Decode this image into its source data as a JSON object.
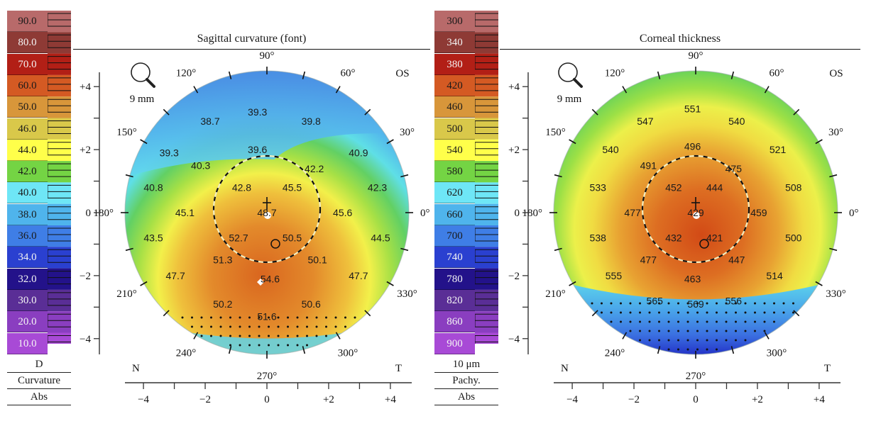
{
  "chart_data": [
    {
      "type": "heatmap",
      "title": "Sagittal curvature (font)",
      "eye": "OS",
      "zoom_label": "9 mm",
      "legend": {
        "unit": "D",
        "map_type": "Curvature",
        "scale": "Abs",
        "levels": [
          {
            "label": "90.0",
            "color": "#b86a6a",
            "dark_text": true
          },
          {
            "label": "80.0",
            "color": "#8e3a35",
            "dark_text": false
          },
          {
            "label": "70.0",
            "color": "#b21f16",
            "dark_text": false
          },
          {
            "label": "60.0",
            "color": "#d45a23",
            "dark_text": true
          },
          {
            "label": "50.0",
            "color": "#d8963a",
            "dark_text": true
          },
          {
            "label": "46.0",
            "color": "#d9c84a",
            "dark_text": true
          },
          {
            "label": "44.0",
            "color": "#ffff4a",
            "dark_text": true
          },
          {
            "label": "42.0",
            "color": "#74d444",
            "dark_text": true
          },
          {
            "label": "40.0",
            "color": "#6ee6f6",
            "dark_text": true
          },
          {
            "label": "38.0",
            "color": "#4fb4ec",
            "dark_text": true
          },
          {
            "label": "36.0",
            "color": "#3f7ee6",
            "dark_text": true
          },
          {
            "label": "34.0",
            "color": "#2a40d0",
            "dark_text": false
          },
          {
            "label": "32.0",
            "color": "#23128a",
            "dark_text": false
          },
          {
            "label": "30.0",
            "color": "#5a2e96",
            "dark_text": false
          },
          {
            "label": "20.0",
            "color": "#8a3ec0",
            "dark_text": false
          },
          {
            "label": "10.0",
            "color": "#a84ad6",
            "dark_text": false
          }
        ]
      },
      "axis": {
        "y_ticks": [
          "+4",
          "+2",
          "0",
          "−2",
          "−4"
        ],
        "x_ticks": [
          "−4",
          "−2",
          "0",
          "+2",
          "+4"
        ],
        "x_left_label": "N",
        "x_right_label": "T",
        "range_mm": [
          -4.5,
          4.5
        ]
      },
      "angle_labels": [
        "0°",
        "30°",
        "60°",
        "90°",
        "120°",
        "150°",
        "180°",
        "210°",
        "240°",
        "270°",
        "300°",
        "330°"
      ],
      "points": [
        {
          "x": -0.3,
          "y": 3.2,
          "v": "39.3"
        },
        {
          "x": -1.8,
          "y": 2.9,
          "v": "38.7"
        },
        {
          "x": 1.4,
          "y": 2.9,
          "v": "39.8"
        },
        {
          "x": -3.1,
          "y": 1.9,
          "v": "39.3"
        },
        {
          "x": -0.3,
          "y": 2.0,
          "v": "39.6"
        },
        {
          "x": 2.9,
          "y": 1.9,
          "v": "40.9"
        },
        {
          "x": -2.1,
          "y": 1.5,
          "v": "40.3"
        },
        {
          "x": 1.5,
          "y": 1.4,
          "v": "42.2"
        },
        {
          "x": -3.6,
          "y": 0.8,
          "v": "40.8"
        },
        {
          "x": -0.8,
          "y": 0.8,
          "v": "42.8"
        },
        {
          "x": 0.8,
          "y": 0.8,
          "v": "45.5"
        },
        {
          "x": 3.5,
          "y": 0.8,
          "v": "42.3"
        },
        {
          "x": -2.6,
          "y": 0.0,
          "v": "45.1"
        },
        {
          "x": 0.0,
          "y": 0.0,
          "v": "48.7"
        },
        {
          "x": 2.4,
          "y": 0.0,
          "v": "45.6"
        },
        {
          "x": -3.6,
          "y": -0.8,
          "v": "43.5"
        },
        {
          "x": -0.9,
          "y": -0.8,
          "v": "52.7"
        },
        {
          "x": 0.8,
          "y": -0.8,
          "v": "50.5"
        },
        {
          "x": 3.6,
          "y": -0.8,
          "v": "44.5"
        },
        {
          "x": -1.4,
          "y": -1.5,
          "v": "51.3"
        },
        {
          "x": 1.6,
          "y": -1.5,
          "v": "50.1"
        },
        {
          "x": -2.9,
          "y": -2.0,
          "v": "47.7"
        },
        {
          "x": 0.1,
          "y": -2.1,
          "v": "54.6"
        },
        {
          "x": 2.9,
          "y": -2.0,
          "v": "47.7"
        },
        {
          "x": -1.4,
          "y": -2.9,
          "v": "50.2"
        },
        {
          "x": 1.4,
          "y": -2.9,
          "v": "50.6"
        },
        {
          "x": 0.0,
          "y": -3.3,
          "v": "51.6"
        }
      ]
    },
    {
      "type": "heatmap",
      "title": "Corneal thickness",
      "eye": "OS",
      "zoom_label": "9 mm",
      "legend": {
        "unit": "10 μm",
        "map_type": "Pachy.",
        "scale": "Abs",
        "levels": [
          {
            "label": "300",
            "color": "#b86a6a",
            "dark_text": true
          },
          {
            "label": "340",
            "color": "#8e3a35",
            "dark_text": false
          },
          {
            "label": "380",
            "color": "#b21f16",
            "dark_text": false
          },
          {
            "label": "420",
            "color": "#d45a23",
            "dark_text": true
          },
          {
            "label": "460",
            "color": "#d8963a",
            "dark_text": true
          },
          {
            "label": "500",
            "color": "#d9c84a",
            "dark_text": true
          },
          {
            "label": "540",
            "color": "#ffff4a",
            "dark_text": true
          },
          {
            "label": "580",
            "color": "#74d444",
            "dark_text": true
          },
          {
            "label": "620",
            "color": "#6ee6f6",
            "dark_text": true
          },
          {
            "label": "660",
            "color": "#4fb4ec",
            "dark_text": true
          },
          {
            "label": "700",
            "color": "#3f7ee6",
            "dark_text": true
          },
          {
            "label": "740",
            "color": "#2a40d0",
            "dark_text": false
          },
          {
            "label": "780",
            "color": "#23128a",
            "dark_text": false
          },
          {
            "label": "820",
            "color": "#5a2e96",
            "dark_text": false
          },
          {
            "label": "860",
            "color": "#8a3ec0",
            "dark_text": false
          },
          {
            "label": "900",
            "color": "#a84ad6",
            "dark_text": false
          }
        ]
      },
      "axis": {
        "y_ticks": [
          "+4",
          "+2",
          "0",
          "−2",
          "−4"
        ],
        "x_ticks": [
          "−4",
          "−2",
          "0",
          "+2",
          "+4"
        ],
        "x_left_label": "N",
        "x_right_label": "T",
        "range_mm": [
          -4.5,
          4.5
        ]
      },
      "angle_labels": [
        "0°",
        "30°",
        "60°",
        "90°",
        "120°",
        "150°",
        "180°",
        "210°",
        "240°",
        "270°",
        "300°",
        "330°"
      ],
      "points": [
        {
          "x": -0.1,
          "y": 3.3,
          "v": "551"
        },
        {
          "x": -1.6,
          "y": 2.9,
          "v": "547"
        },
        {
          "x": 1.3,
          "y": 2.9,
          "v": "540"
        },
        {
          "x": -2.7,
          "y": 2.0,
          "v": "540"
        },
        {
          "x": -0.1,
          "y": 2.1,
          "v": "496"
        },
        {
          "x": 2.6,
          "y": 2.0,
          "v": "521"
        },
        {
          "x": -1.5,
          "y": 1.5,
          "v": "491"
        },
        {
          "x": 1.2,
          "y": 1.4,
          "v": "475"
        },
        {
          "x": -3.1,
          "y": 0.8,
          "v": "533"
        },
        {
          "x": -0.7,
          "y": 0.8,
          "v": "452"
        },
        {
          "x": 0.6,
          "y": 0.8,
          "v": "444"
        },
        {
          "x": 3.1,
          "y": 0.8,
          "v": "508"
        },
        {
          "x": -2.0,
          "y": 0.0,
          "v": "477"
        },
        {
          "x": 0.0,
          "y": 0.0,
          "v": "429"
        },
        {
          "x": 2.0,
          "y": 0.0,
          "v": "459"
        },
        {
          "x": -3.1,
          "y": -0.8,
          "v": "538"
        },
        {
          "x": -0.7,
          "y": -0.8,
          "v": "432"
        },
        {
          "x": 0.6,
          "y": -0.8,
          "v": "421"
        },
        {
          "x": 3.1,
          "y": -0.8,
          "v": "500"
        },
        {
          "x": -1.5,
          "y": -1.5,
          "v": "477"
        },
        {
          "x": 1.3,
          "y": -1.5,
          "v": "447"
        },
        {
          "x": -2.6,
          "y": -2.0,
          "v": "555"
        },
        {
          "x": -0.1,
          "y": -2.1,
          "v": "463"
        },
        {
          "x": 2.5,
          "y": -2.0,
          "v": "514"
        },
        {
          "x": -1.3,
          "y": -2.8,
          "v": "565"
        },
        {
          "x": 0.0,
          "y": -2.9,
          "v": "569"
        },
        {
          "x": 1.2,
          "y": -2.8,
          "v": "556"
        }
      ]
    }
  ]
}
